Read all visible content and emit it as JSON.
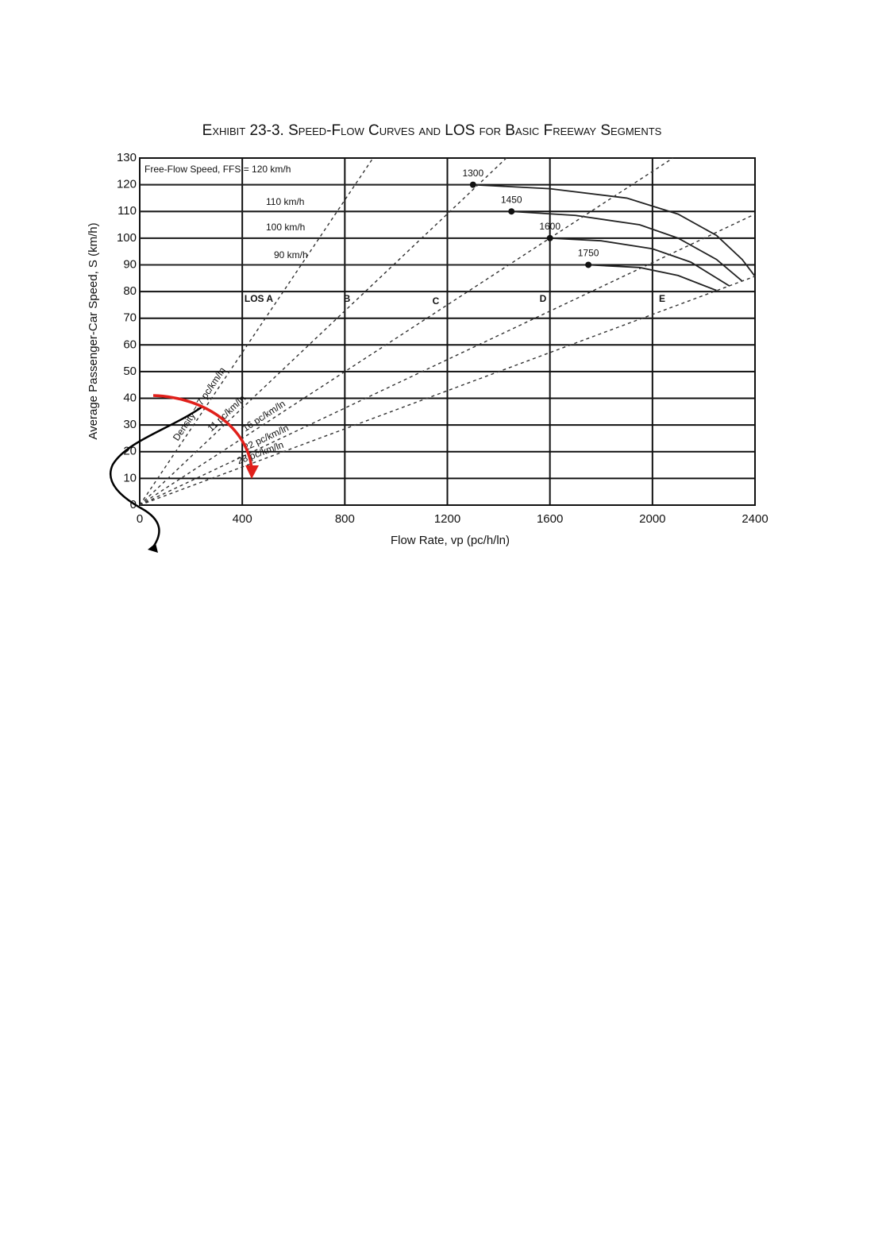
{
  "chart_data": {
    "type": "line",
    "title": "Exhibit 23-3.  Speed-Flow Curves and LOS for Basic Freeway Segments",
    "xlabel": "Flow Rate, vp (pc/h/ln)",
    "ylabel": "Average Passenger-Car Speed, S (km/h)",
    "xlim": [
      0,
      2400
    ],
    "ylim": [
      0,
      130
    ],
    "xticks": [
      0,
      400,
      800,
      1200,
      1600,
      2000,
      2400
    ],
    "yticks": [
      0,
      10,
      20,
      30,
      40,
      50,
      60,
      70,
      80,
      90,
      100,
      110,
      120,
      130
    ],
    "grid": true,
    "series": [
      {
        "name": "Free-Flow Speed, FFS = 120 km/h",
        "color": "#222222",
        "style": "solid",
        "x": [
          0,
          1300,
          1600,
          1900,
          2100,
          2250,
          2350,
          2400
        ],
        "values": [
          120,
          120,
          118.5,
          115,
          109,
          101,
          92,
          85.7
        ]
      },
      {
        "name": "110 km/h",
        "color": "#222222",
        "style": "solid",
        "x": [
          0,
          1450,
          1700,
          1950,
          2100,
          2250,
          2350
        ],
        "values": [
          110,
          110,
          108.5,
          105,
          100,
          92,
          83.9
        ]
      },
      {
        "name": "100 km/h",
        "color": "#222222",
        "style": "solid",
        "x": [
          0,
          1600,
          1800,
          2000,
          2150,
          2300
        ],
        "values": [
          100,
          100,
          99,
          96,
          91,
          82.1
        ]
      },
      {
        "name": "90 km/h",
        "color": "#222222",
        "style": "solid",
        "x": [
          0,
          1750,
          1950,
          2100,
          2250
        ],
        "values": [
          90,
          90,
          89,
          86,
          80.4
        ]
      },
      {
        "name": "Density = 7 pc/km/ln",
        "color": "#333333",
        "style": "dashed",
        "x": [
          0,
          910
        ],
        "values": [
          0,
          130
        ]
      },
      {
        "name": "11 pc/km/ln",
        "color": "#333333",
        "style": "dashed",
        "x": [
          0,
          1430
        ],
        "values": [
          0,
          130
        ]
      },
      {
        "name": "16 pc/km/ln",
        "color": "#333333",
        "style": "dashed",
        "x": [
          0,
          2080
        ],
        "values": [
          0,
          130
        ]
      },
      {
        "name": "22 pc/km/ln",
        "color": "#333333",
        "style": "dashed",
        "x": [
          0,
          2400
        ],
        "values": [
          0,
          109
        ]
      },
      {
        "name": "28 pc/km/ln",
        "color": "#333333",
        "style": "dashed",
        "x": [
          0,
          2400
        ],
        "values": [
          0,
          85.7
        ]
      }
    ],
    "breakpoints": {
      "x": [
        1300,
        1450,
        1600,
        1750
      ],
      "values": [
        120,
        110,
        100,
        90
      ],
      "color": "#111111"
    },
    "los_labels": [
      "LOS A",
      "B",
      "C",
      "D",
      "E"
    ]
  }
}
